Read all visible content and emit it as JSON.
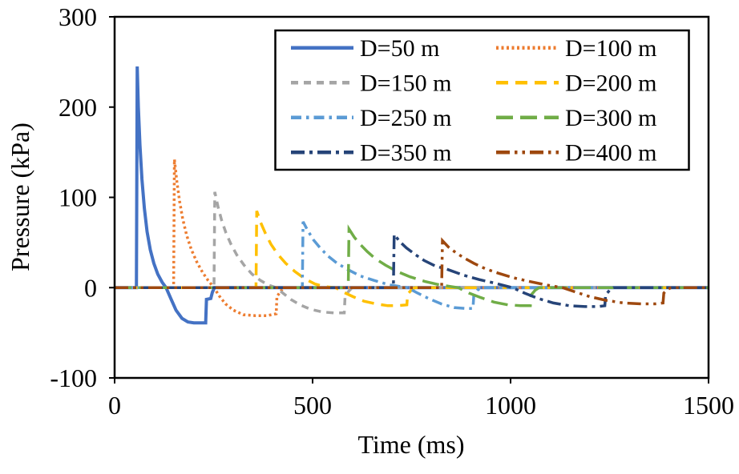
{
  "chart_data": {
    "type": "line",
    "title": "",
    "xlabel": "Time (ms)",
    "ylabel": "Pressure (kPa)",
    "xlim": [
      0,
      1500
    ],
    "ylim": [
      -100,
      300
    ],
    "xticks": [
      0,
      500,
      1000,
      1500
    ],
    "yticks": [
      300,
      200,
      100,
      0,
      -100
    ],
    "grid": false,
    "legend": {
      "position": "top-inside",
      "columns": 2
    },
    "colors": {
      "axis": "#000000",
      "background": "#ffffff"
    },
    "series": [
      {
        "name": "D=50 m",
        "color": "#4472C4",
        "line_style": "solid",
        "width": 4,
        "arrival_ms": 55,
        "peak_kpa": 245,
        "min_kpa": -39,
        "points": [
          [
            0,
            0
          ],
          [
            55,
            0
          ],
          [
            57,
            245
          ],
          [
            60,
            200
          ],
          [
            64,
            158
          ],
          [
            69,
            120
          ],
          [
            75,
            88
          ],
          [
            82,
            62
          ],
          [
            90,
            42
          ],
          [
            99,
            27
          ],
          [
            109,
            15
          ],
          [
            120,
            6
          ],
          [
            130,
            0
          ],
          [
            142,
            -12
          ],
          [
            155,
            -25
          ],
          [
            170,
            -34
          ],
          [
            185,
            -38
          ],
          [
            200,
            -39
          ],
          [
            230,
            -39
          ],
          [
            232,
            -13
          ],
          [
            243,
            -12
          ],
          [
            247,
            -5
          ],
          [
            252,
            0
          ],
          [
            1500,
            0
          ]
        ]
      },
      {
        "name": "D=100 m",
        "color": "#ED7D31",
        "line_style": "dot",
        "width": 3.5,
        "arrival_ms": 150,
        "peak_kpa": 142,
        "min_kpa": -31,
        "points": [
          [
            0,
            0
          ],
          [
            149,
            0
          ],
          [
            151,
            142
          ],
          [
            157,
            118
          ],
          [
            164,
            96
          ],
          [
            172,
            76
          ],
          [
            182,
            58
          ],
          [
            194,
            42
          ],
          [
            208,
            28
          ],
          [
            222,
            17
          ],
          [
            236,
            8
          ],
          [
            251,
            0
          ],
          [
            264,
            -9
          ],
          [
            280,
            -18
          ],
          [
            300,
            -25
          ],
          [
            325,
            -30
          ],
          [
            355,
            -31
          ],
          [
            385,
            -31
          ],
          [
            408,
            -29
          ],
          [
            410,
            -10
          ],
          [
            419,
            -4
          ],
          [
            428,
            0
          ],
          [
            1500,
            0
          ]
        ]
      },
      {
        "name": "D=150 m",
        "color": "#A5A5A5",
        "line_style": "dash",
        "width": 3.5,
        "arrival_ms": 252,
        "peak_kpa": 106,
        "min_kpa": -28,
        "points": [
          [
            0,
            0
          ],
          [
            251,
            0
          ],
          [
            253,
            106
          ],
          [
            261,
            90
          ],
          [
            270,
            75
          ],
          [
            281,
            61
          ],
          [
            294,
            48
          ],
          [
            309,
            36
          ],
          [
            327,
            25
          ],
          [
            347,
            15
          ],
          [
            368,
            8
          ],
          [
            388,
            3
          ],
          [
            408,
            0
          ],
          [
            425,
            -6
          ],
          [
            445,
            -13
          ],
          [
            468,
            -19
          ],
          [
            495,
            -24
          ],
          [
            525,
            -27
          ],
          [
            555,
            -28
          ],
          [
            580,
            -28
          ],
          [
            582,
            -10
          ],
          [
            591,
            -4
          ],
          [
            600,
            0
          ],
          [
            1500,
            0
          ]
        ]
      },
      {
        "name": "D=200 m",
        "color": "#FFC000",
        "line_style": "long-dash",
        "width": 3.5,
        "arrival_ms": 358,
        "peak_kpa": 85,
        "min_kpa": -20,
        "points": [
          [
            0,
            0
          ],
          [
            357,
            0
          ],
          [
            359,
            85
          ],
          [
            369,
            72
          ],
          [
            381,
            60
          ],
          [
            395,
            48
          ],
          [
            412,
            37
          ],
          [
            432,
            27
          ],
          [
            455,
            18
          ],
          [
            480,
            10
          ],
          [
            506,
            4
          ],
          [
            532,
            1
          ],
          [
            558,
            0
          ],
          [
            578,
            -5
          ],
          [
            602,
            -10
          ],
          [
            630,
            -15
          ],
          [
            660,
            -18
          ],
          [
            690,
            -20
          ],
          [
            715,
            -20
          ],
          [
            738,
            -19
          ],
          [
            740,
            -7
          ],
          [
            749,
            -3
          ],
          [
            758,
            0
          ],
          [
            1500,
            0
          ]
        ]
      },
      {
        "name": "D=250 m",
        "color": "#5B9BD5",
        "line_style": "dash-dot",
        "width": 3.5,
        "arrival_ms": 475,
        "peak_kpa": 73,
        "min_kpa": -23,
        "points": [
          [
            0,
            0
          ],
          [
            474,
            0
          ],
          [
            476,
            73
          ],
          [
            488,
            63
          ],
          [
            502,
            53
          ],
          [
            519,
            44
          ],
          [
            539,
            35
          ],
          [
            562,
            27
          ],
          [
            589,
            20
          ],
          [
            620,
            13
          ],
          [
            655,
            8
          ],
          [
            695,
            3
          ],
          [
            740,
            0
          ],
          [
            765,
            -6
          ],
          [
            793,
            -12
          ],
          [
            825,
            -18
          ],
          [
            857,
            -22
          ],
          [
            885,
            -23
          ],
          [
            905,
            -23
          ],
          [
            907,
            -9
          ],
          [
            916,
            -3
          ],
          [
            925,
            0
          ],
          [
            1500,
            0
          ]
        ]
      },
      {
        "name": "D=300 m",
        "color": "#70AD47",
        "line_style": "long-dash-2",
        "width": 3.5,
        "arrival_ms": 590,
        "peak_kpa": 65,
        "min_kpa": -20,
        "points": [
          [
            0,
            0
          ],
          [
            590,
            0
          ],
          [
            592,
            65
          ],
          [
            605,
            56
          ],
          [
            620,
            48
          ],
          [
            638,
            40
          ],
          [
            659,
            32
          ],
          [
            684,
            25
          ],
          [
            713,
            18
          ],
          [
            746,
            12
          ],
          [
            783,
            7
          ],
          [
            822,
            3
          ],
          [
            868,
            0
          ],
          [
            895,
            -6
          ],
          [
            925,
            -11
          ],
          [
            958,
            -16
          ],
          [
            993,
            -19
          ],
          [
            1025,
            -20
          ],
          [
            1050,
            -20
          ],
          [
            1052,
            -8
          ],
          [
            1062,
            -3
          ],
          [
            1072,
            0
          ],
          [
            1500,
            0
          ]
        ]
      },
      {
        "name": "D=350 m",
        "color": "#264478",
        "line_style": "long-dash-dot",
        "width": 3.5,
        "arrival_ms": 705,
        "peak_kpa": 59,
        "min_kpa": -21,
        "points": [
          [
            0,
            0
          ],
          [
            704,
            0
          ],
          [
            706,
            59
          ],
          [
            720,
            51
          ],
          [
            737,
            44
          ],
          [
            758,
            37
          ],
          [
            782,
            30
          ],
          [
            810,
            24
          ],
          [
            842,
            20
          ],
          [
            880,
            14
          ],
          [
            920,
            9
          ],
          [
            960,
            5
          ],
          [
            1005,
            0
          ],
          [
            1035,
            -6
          ],
          [
            1070,
            -12
          ],
          [
            1108,
            -17
          ],
          [
            1148,
            -20
          ],
          [
            1188,
            -21
          ],
          [
            1222,
            -21
          ],
          [
            1238,
            -20
          ],
          [
            1240,
            -8
          ],
          [
            1250,
            -3
          ],
          [
            1260,
            0
          ],
          [
            1500,
            0
          ]
        ]
      },
      {
        "name": "D=400 m",
        "color": "#9E480E",
        "line_style": "long-dash-dot-dot",
        "width": 3.5,
        "arrival_ms": 828,
        "peak_kpa": 52,
        "min_kpa": -18,
        "points": [
          [
            0,
            0
          ],
          [
            826,
            0
          ],
          [
            828,
            52
          ],
          [
            843,
            45
          ],
          [
            861,
            39
          ],
          [
            882,
            33
          ],
          [
            907,
            27
          ],
          [
            936,
            21
          ],
          [
            969,
            16
          ],
          [
            1006,
            11
          ],
          [
            1047,
            7
          ],
          [
            1090,
            3
          ],
          [
            1132,
            0
          ],
          [
            1165,
            -5
          ],
          [
            1200,
            -10
          ],
          [
            1240,
            -14
          ],
          [
            1285,
            -17
          ],
          [
            1330,
            -18
          ],
          [
            1365,
            -18
          ],
          [
            1385,
            -17
          ],
          [
            1387,
            -6
          ],
          [
            1396,
            -2
          ],
          [
            1405,
            0
          ],
          [
            1500,
            0
          ]
        ]
      }
    ]
  }
}
